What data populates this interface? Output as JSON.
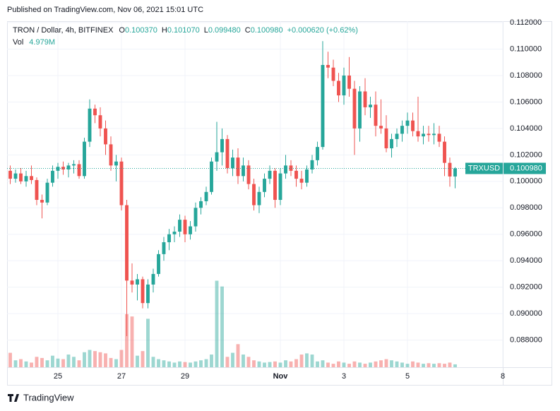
{
  "chart_data": {
    "type": "candlestick",
    "published": "Published on TradingView.com, Nov 06, 2021 15:01 UTC",
    "title": "TRON / Dollar, 4h, BITFINEX",
    "ohlc_legend": [
      {
        "key": "O",
        "value": "0.100370"
      },
      {
        "key": "H",
        "value": "0.101070"
      },
      {
        "key": "L",
        "value": "0.099480"
      },
      {
        "key": "C",
        "value": "0.100980"
      }
    ],
    "change": "+0.000620 (+0.62%)",
    "volume_label": "Vol",
    "volume_last_label": "4.979M",
    "last_price_label": "0.100980",
    "grid": true,
    "x": [
      23.5,
      23.667,
      23.833,
      24,
      24.167,
      24.333,
      24.5,
      24.667,
      24.833,
      25,
      25.167,
      25.333,
      25.5,
      25.667,
      25.833,
      26,
      26.167,
      26.333,
      26.5,
      26.667,
      26.833,
      27,
      27.167,
      27.333,
      27.5,
      27.667,
      27.833,
      28,
      28.167,
      28.333,
      28.5,
      28.667,
      28.833,
      29,
      29.167,
      29.333,
      29.5,
      29.667,
      29.833,
      30,
      30.167,
      30.333,
      30.5,
      30.667,
      30.833,
      31,
      31.167,
      31.333,
      31.5,
      31.667,
      31.833,
      32,
      32.167,
      32.333,
      32.5,
      32.667,
      32.833,
      33,
      33.167,
      33.333,
      33.5,
      33.667,
      33.833,
      34,
      34.167,
      34.333,
      34.5,
      34.667,
      34.833,
      35,
      35.167,
      35.333,
      35.5,
      35.667,
      35.833,
      36,
      36.167,
      36.333,
      36.5,
      36.667,
      36.833,
      37,
      37.167,
      37.333,
      37.5
    ],
    "series": [
      {
        "name": "TRXUSD",
        "up_color": "#26a69a",
        "down_color": "#ef5350",
        "open": [
          0.1008,
          0.1002,
          0.1006,
          0.1,
          0.1004,
          0.1001,
          0.0986,
          0.0984,
          0.0999,
          0.1008,
          0.1011,
          0.1009,
          0.1012,
          0.1013,
          0.1004,
          0.103,
          0.1055,
          0.105,
          0.104,
          0.1028,
          0.1012,
          0.1015,
          0.0982,
          0.0925,
          0.0922,
          0.0926,
          0.0908,
          0.0922,
          0.093,
          0.0945,
          0.0954,
          0.096,
          0.0962,
          0.0971,
          0.096,
          0.0966,
          0.098,
          0.0985,
          0.0992,
          0.1015,
          0.1022,
          0.1032,
          0.101,
          0.1018,
          0.1004,
          0.1012,
          0.0998,
          0.0982,
          0.0992,
          0.1002,
          0.1008,
          0.0986,
          0.1006,
          0.1012,
          0.1008,
          0.1002,
          0.0999,
          0.1009,
          0.1016,
          0.1026,
          0.1088,
          0.1086,
          0.1076,
          0.1065,
          0.108,
          0.107,
          0.104,
          0.1068,
          0.1056,
          0.1058,
          0.1042,
          0.104,
          0.1025,
          0.1032,
          0.1036,
          0.1042,
          0.1046,
          0.1038,
          0.1034,
          0.1036,
          0.1035,
          0.1036,
          0.103,
          0.1014,
          0.10037
        ],
        "high": [
          0.1012,
          0.1009,
          0.101,
          0.1008,
          0.1012,
          0.1003,
          0.099,
          0.1002,
          0.1012,
          0.1014,
          0.1015,
          0.1014,
          0.1016,
          0.1016,
          0.1033,
          0.1062,
          0.1058,
          0.1056,
          0.1046,
          0.1034,
          0.102,
          0.1018,
          0.0986,
          0.0938,
          0.093,
          0.0928,
          0.0926,
          0.0934,
          0.0948,
          0.0958,
          0.0964,
          0.0966,
          0.0975,
          0.0974,
          0.097,
          0.0984,
          0.0988,
          0.0996,
          0.1018,
          0.1045,
          0.104,
          0.1035,
          0.1024,
          0.1025,
          0.1018,
          0.1016,
          0.1002,
          0.0996,
          0.1006,
          0.1012,
          0.101,
          0.101,
          0.102,
          0.1016,
          0.1012,
          0.1008,
          0.1012,
          0.102,
          0.103,
          0.1106,
          0.1098,
          0.1092,
          0.1082,
          0.1086,
          0.1094,
          0.1076,
          0.1072,
          0.1078,
          0.1064,
          0.1068,
          0.1062,
          0.105,
          0.1036,
          0.104,
          0.1046,
          0.1052,
          0.1052,
          0.1064,
          0.1042,
          0.1042,
          0.1044,
          0.1042,
          0.1034,
          0.1018,
          0.10107
        ],
        "low": [
          0.0998,
          0.0999,
          0.0998,
          0.0996,
          0.0998,
          0.0982,
          0.0972,
          0.0982,
          0.0996,
          0.1002,
          0.1005,
          0.1003,
          0.1006,
          0.1002,
          0.1002,
          0.1026,
          0.1044,
          0.1034,
          0.102,
          0.1008,
          0.1,
          0.0978,
          0.0883,
          0.0916,
          0.091,
          0.0904,
          0.0904,
          0.0916,
          0.0928,
          0.094,
          0.0948,
          0.0954,
          0.0958,
          0.0954,
          0.0956,
          0.0962,
          0.0975,
          0.0982,
          0.099,
          0.1008,
          0.1012,
          0.1006,
          0.1004,
          0.0998,
          0.1,
          0.0994,
          0.0978,
          0.0976,
          0.0988,
          0.0998,
          0.098,
          0.0982,
          0.1002,
          0.1004,
          0.0996,
          0.0994,
          0.0996,
          0.1006,
          0.1012,
          0.1024,
          0.1078,
          0.1072,
          0.106,
          0.1058,
          0.1064,
          0.102,
          0.103,
          0.105,
          0.1048,
          0.1034,
          0.1036,
          0.1022,
          0.1018,
          0.1026,
          0.103,
          0.1036,
          0.1034,
          0.103,
          0.1028,
          0.103,
          0.1028,
          0.1026,
          0.1004,
          0.0996,
          0.09948
        ],
        "close": [
          0.1002,
          0.1006,
          0.1,
          0.1004,
          0.1001,
          0.0986,
          0.0984,
          0.0999,
          0.1008,
          0.1011,
          0.1009,
          0.1012,
          0.1013,
          0.1004,
          0.103,
          0.1055,
          0.105,
          0.104,
          0.1028,
          0.1012,
          0.1015,
          0.0982,
          0.0925,
          0.0922,
          0.0926,
          0.0908,
          0.0922,
          0.093,
          0.0945,
          0.0954,
          0.096,
          0.0962,
          0.0971,
          0.096,
          0.0966,
          0.098,
          0.0985,
          0.0992,
          0.1015,
          0.1022,
          0.1032,
          0.101,
          0.1018,
          0.1004,
          0.1012,
          0.0998,
          0.0982,
          0.0992,
          0.1002,
          0.1008,
          0.0986,
          0.1006,
          0.1012,
          0.1008,
          0.1002,
          0.0999,
          0.1009,
          0.1016,
          0.1026,
          0.1088,
          0.1086,
          0.1076,
          0.1065,
          0.108,
          0.107,
          0.104,
          0.1068,
          0.1056,
          0.1058,
          0.1042,
          0.104,
          0.1025,
          0.1032,
          0.1036,
          0.1042,
          0.1046,
          0.1038,
          0.1034,
          0.1036,
          0.1035,
          0.1036,
          0.103,
          0.1014,
          0.10037,
          0.10098
        ],
        "volume": [
          25000000,
          12000000,
          14000000,
          10000000,
          8000000,
          18000000,
          16000000,
          12000000,
          20000000,
          15000000,
          14000000,
          22000000,
          18000000,
          12000000,
          26000000,
          30000000,
          28000000,
          26000000,
          24000000,
          16000000,
          14000000,
          30000000,
          92000000,
          88000000,
          20000000,
          28000000,
          84000000,
          18000000,
          14000000,
          12000000,
          10000000,
          8000000,
          10000000,
          9000000,
          8000000,
          10000000,
          12000000,
          14000000,
          22000000,
          150000000,
          140000000,
          18000000,
          25000000,
          40000000,
          22000000,
          18000000,
          12000000,
          10000000,
          8000000,
          9000000,
          10000000,
          8000000,
          12000000,
          10000000,
          14000000,
          22000000,
          24000000,
          22000000,
          10000000,
          12000000,
          8000000,
          6000000,
          10000000,
          8000000,
          6000000,
          10000000,
          8000000,
          6000000,
          8000000,
          10000000,
          12000000,
          14000000,
          12000000,
          10000000,
          8000000,
          6000000,
          10000000,
          8000000,
          6000000,
          7000000,
          6000000,
          7000000,
          6000000,
          8000000,
          4979000
        ]
      }
    ],
    "xlim": [
      23.4,
      39.0
    ],
    "xticks": [
      25,
      27,
      29,
      {
        "value": 32,
        "label": "Nov"
      },
      {
        "value": 34,
        "label": "3"
      },
      {
        "value": 36,
        "label": "5"
      },
      {
        "value": 39,
        "label": "8"
      }
    ],
    "ylim": [
      0.08595,
      0.11211
    ],
    "yticks": [
      {
        "value": 0.088,
        "label": "0.088000"
      },
      {
        "value": 0.09,
        "label": "0.090000"
      },
      {
        "value": 0.092,
        "label": "0.092000"
      },
      {
        "value": 0.094,
        "label": "0.094000"
      },
      {
        "value": 0.096,
        "label": "0.096000"
      },
      {
        "value": 0.098,
        "label": "0.098000"
      },
      {
        "value": 0.1,
        "label": "0.100000"
      },
      {
        "value": 0.102,
        "label": "0.102000"
      },
      {
        "value": 0.104,
        "label": "0.104000"
      },
      {
        "value": 0.106,
        "label": "0.106000"
      },
      {
        "value": 0.108,
        "label": "0.108000"
      },
      {
        "value": 0.11,
        "label": "0.110000"
      },
      {
        "value": 0.112,
        "label": "0.112000"
      }
    ],
    "vlim": [
      0,
      600000000
    ]
  },
  "footer": "TradingView"
}
